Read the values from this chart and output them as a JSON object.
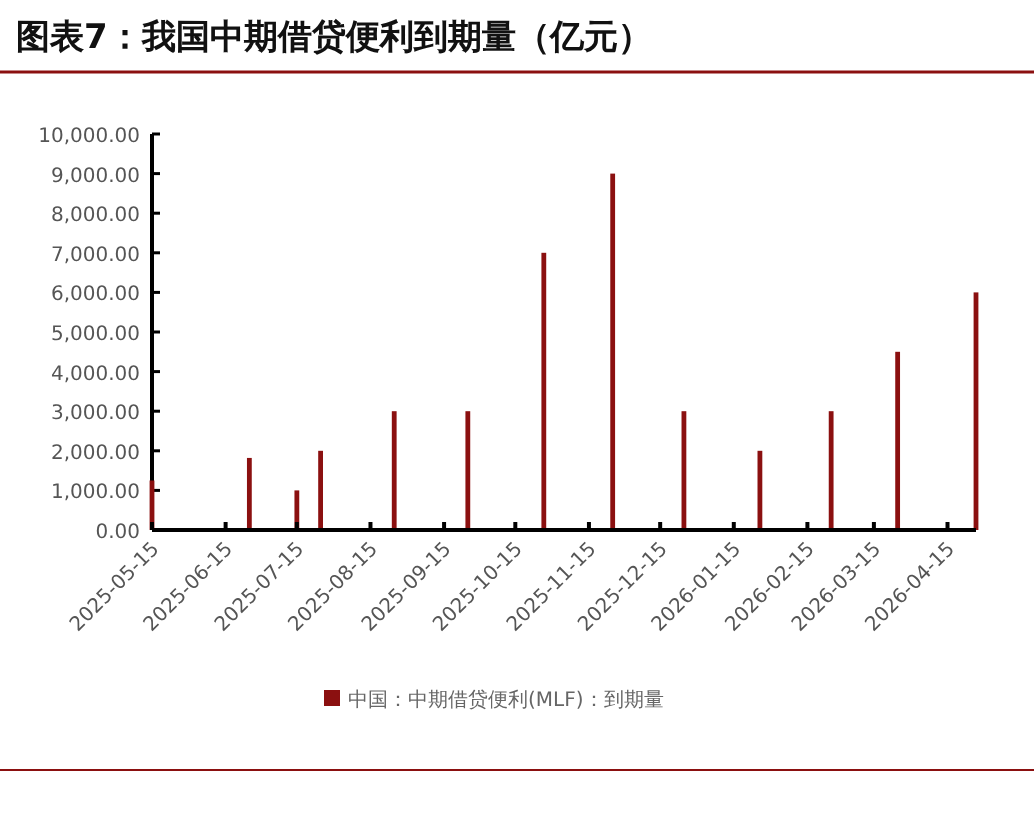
{
  "chart_data": {
    "type": "bar",
    "title": "图表7：我国中期借贷便利到期量（亿元）",
    "x": [
      "2025-05-15",
      "2025-06-25",
      "2025-07-15",
      "2025-07-25",
      "2025-08-25",
      "2025-09-25",
      "2025-10-27",
      "2025-11-25",
      "2025-12-25",
      "2026-01-26",
      "2026-02-25",
      "2026-03-25",
      "2026-04-27"
    ],
    "series": [
      {
        "name": "中国：中期借贷便利(MLF)：到期量",
        "color": "#8b1010",
        "values": [
          1250,
          1820,
          1000,
          2000,
          3000,
          3000,
          7000,
          9000,
          3000,
          2000,
          3000,
          4500,
          6000
        ]
      }
    ],
    "xlim": [
      "2025-05-15",
      "2026-04-27"
    ],
    "xticks": [
      "2025-05-15",
      "2025-06-15",
      "2025-07-15",
      "2025-08-15",
      "2025-09-15",
      "2025-10-15",
      "2025-11-15",
      "2025-12-15",
      "2026-01-15",
      "2026-02-15",
      "2026-03-15",
      "2026-04-15"
    ],
    "ylim": [
      0,
      10000
    ],
    "yticks": [
      {
        "value": 0,
        "label": "0.00"
      },
      {
        "value": 1000,
        "label": "1,000.00"
      },
      {
        "value": 2000,
        "label": "2,000.00"
      },
      {
        "value": 3000,
        "label": "3,000.00"
      },
      {
        "value": 4000,
        "label": "4,000.00"
      },
      {
        "value": 5000,
        "label": "5,000.00"
      },
      {
        "value": 6000,
        "label": "6,000.00"
      },
      {
        "value": 7000,
        "label": "7,000.00"
      },
      {
        "value": 8000,
        "label": "8,000.00"
      },
      {
        "value": 9000,
        "label": "9,000.00"
      },
      {
        "value": 10000,
        "label": "10,000.00"
      }
    ],
    "legend": "bottom",
    "grid": false
  }
}
